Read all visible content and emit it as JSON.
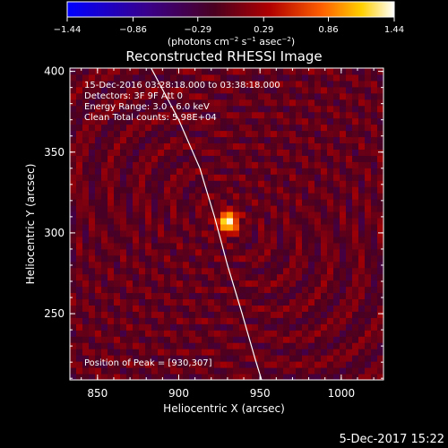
{
  "chart_data": {
    "type": "heatmap",
    "title": "Reconstructed RHESSI Image",
    "xlabel": "Heliocentric X (arcsec)",
    "ylabel": "Heliocentric Y (arcsec)",
    "xlim": [
      833,
      1026
    ],
    "ylim": [
      209,
      402
    ],
    "x_ticks": [
      850,
      900,
      950,
      1000
    ],
    "y_ticks": [
      250,
      300,
      350,
      400
    ],
    "grid": false,
    "colorbar": {
      "ticks": [
        -1.44,
        -0.86,
        -0.29,
        0.29,
        0.86,
        1.44
      ],
      "tick_labels": [
        "−1.44",
        "−0.86",
        "−0.29",
        "0.29",
        "0.86",
        "1.44"
      ],
      "min": -1.44,
      "max": 1.44,
      "colormap": "blue-purple-red-yellow-white"
    },
    "units_prefix": "(photons cm",
    "units_exp1": "−2",
    "units_mid": " s",
    "units_exp2": "−1",
    "units_mid2": " asec",
    "units_exp3": "−2",
    "units_suffix": ")",
    "annotations": {
      "time_range": "15-Dec-2016 03:28:18.000 to 03:38:18.000",
      "detectors": "Detectors: 3F 9F  Att 0",
      "energy_range": "Energy Range: 3.0 - 6.0 keV",
      "clean": "Clean    Total counts: 5.98E+04",
      "peak": "Position of Peak = [930,307]"
    },
    "peak": {
      "x": 930,
      "y": 307,
      "value": 1.44
    },
    "limb_curve": [
      [
        883,
        402
      ],
      [
        900,
        370
      ],
      [
        913,
        340
      ],
      [
        922,
        310
      ],
      [
        930,
        280
      ],
      [
        939,
        250
      ],
      [
        947,
        222
      ],
      [
        951,
        209
      ]
    ]
  },
  "footer_date": "5-Dec-2017 15:22",
  "colors": {
    "background": "#000000",
    "text": "#ffffff"
  }
}
